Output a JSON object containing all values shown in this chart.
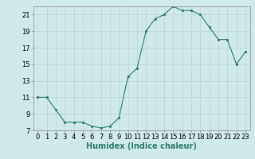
{
  "x": [
    0,
    1,
    2,
    3,
    4,
    5,
    6,
    7,
    8,
    9,
    10,
    11,
    12,
    13,
    14,
    15,
    16,
    17,
    18,
    19,
    20,
    21,
    22,
    23
  ],
  "y": [
    11,
    11,
    9.5,
    8,
    8,
    8,
    7.5,
    7.3,
    7.5,
    8.5,
    13.5,
    14.5,
    19,
    20.5,
    21,
    22,
    21.5,
    21.5,
    21,
    19.5,
    18,
    18,
    15,
    16.5
  ],
  "xlim": [
    -0.5,
    23.5
  ],
  "ylim": [
    7,
    22
  ],
  "yticks": [
    7,
    9,
    11,
    13,
    15,
    17,
    19,
    21
  ],
  "xticks": [
    0,
    1,
    2,
    3,
    4,
    5,
    6,
    7,
    8,
    9,
    10,
    11,
    12,
    13,
    14,
    15,
    16,
    17,
    18,
    19,
    20,
    21,
    22,
    23
  ],
  "xlabel": "Humidex (Indice chaleur)",
  "line_color": "#2d7a6e",
  "marker_color": "#2d7a6e",
  "bg_color": "#ceeaea",
  "grid_color": "#b8d4d4",
  "xlabel_color": "#2d7a6e",
  "xlabel_fontsize": 7,
  "tick_fontsize": 6,
  "marker_size": 2.0,
  "line_width": 0.8
}
